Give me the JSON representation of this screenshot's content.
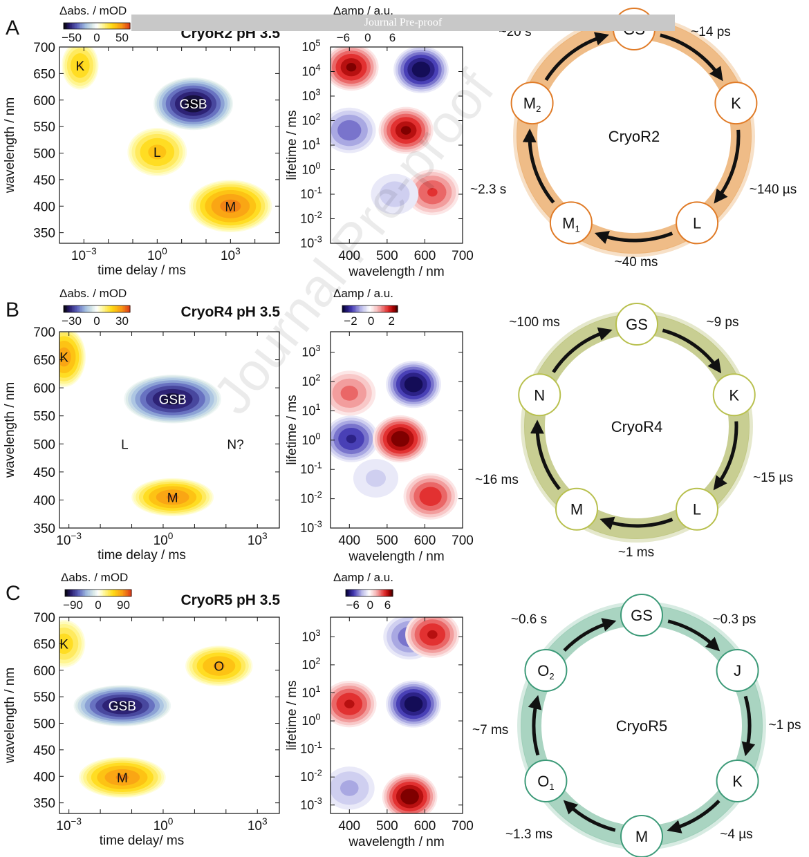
{
  "banner": "Journal Pre-proof",
  "watermark": "Journal Pre-proof",
  "shared": {
    "map_xlabel": "time delay / ms",
    "map_xlabel_c": "time delay/ ms",
    "map_ylabel": "wavelength / nm",
    "map_cbar_label": "Δabs. / mOD",
    "lda_xlabel": "wavelength / nm",
    "lda_ylabel": "lifetime / ms",
    "lda_cbar_label": "Δamp / a.u."
  },
  "chart_data": [
    {
      "panel": "A",
      "type": "heatmap",
      "title": "CryoR2 pH 3.5",
      "xlabel": "time delay / ms",
      "ylabel": "wavelength / nm",
      "x_scale": "log",
      "xlim": [
        0.0001,
        100000
      ],
      "x_ticks": [
        {
          "v": 0.001,
          "b": "10",
          "e": "−3"
        },
        {
          "v": 1,
          "b": "10",
          "e": "0"
        },
        {
          "v": 1000,
          "b": "10",
          "e": "3"
        }
      ],
      "ylim": [
        330,
        700
      ],
      "y_ticks": [
        350,
        400,
        450,
        500,
        550,
        600,
        650,
        700
      ],
      "colorbar": {
        "label": "Δabs. / mOD",
        "ticks": [
          "−50",
          "0",
          "50"
        ]
      },
      "features": [
        {
          "label": "K",
          "kind": "pos",
          "time": 0.0007,
          "wl": 665,
          "amp": 0.55,
          "swl": 30,
          "slog": 0.5
        },
        {
          "label": "GSB",
          "kind": "neg",
          "time": 30,
          "wl": 593,
          "amp": 1.0,
          "swl": 32,
          "slog": 1.05
        },
        {
          "label": "L",
          "kind": "pos",
          "time": 1,
          "wl": 502,
          "amp": 0.6,
          "swl": 30,
          "slog": 0.8
        },
        {
          "label": "M",
          "kind": "pos",
          "time": 1000,
          "wl": 400,
          "amp": 0.85,
          "swl": 32,
          "slog": 1.1
        }
      ]
    },
    {
      "panel": "A",
      "type": "heatmap",
      "title": "",
      "xlabel": "wavelength / nm",
      "ylabel": "lifetime / ms",
      "xlim": [
        350,
        700
      ],
      "x_ticks": [
        400,
        500,
        600,
        700
      ],
      "y_scale": "log",
      "ylim": [
        0.001,
        100000
      ],
      "y_ticks": [
        {
          "v": 0.001,
          "b": "10",
          "e": "-3"
        },
        {
          "v": 0.01,
          "b": "10",
          "e": "-2"
        },
        {
          "v": 0.1,
          "b": "10",
          "e": "-1"
        },
        {
          "v": 1,
          "b": "10",
          "e": "0"
        },
        {
          "v": 10,
          "b": "10",
          "e": "1"
        },
        {
          "v": 100,
          "b": "10",
          "e": "2"
        },
        {
          "v": 1000,
          "b": "10",
          "e": "3"
        },
        {
          "v": 10000,
          "b": "10",
          "e": "4"
        },
        {
          "v": 100000,
          "b": "10",
          "e": "5"
        }
      ],
      "colorbar": {
        "label": "Δamp / a.u.",
        "ticks": [
          "−6",
          "0",
          "6"
        ]
      },
      "annotation": "~2.3 s",
      "features": [
        {
          "kind": "pos",
          "wl": 405,
          "lifetime": 15000,
          "amp": 0.9
        },
        {
          "kind": "neg",
          "wl": 590,
          "lifetime": 12000,
          "amp": 1.0
        },
        {
          "kind": "neg",
          "wl": 400,
          "lifetime": 40,
          "amp": 0.6
        },
        {
          "kind": "pos",
          "wl": 550,
          "lifetime": 40,
          "amp": 0.9
        },
        {
          "kind": "pos",
          "wl": 620,
          "lifetime": 0.12,
          "amp": 0.65
        },
        {
          "kind": "neg",
          "wl": 520,
          "lifetime": 0.1,
          "amp": 0.3
        }
      ]
    },
    {
      "panel": "A",
      "type": "cycle",
      "center_label": "CryoR2",
      "color": "#e9a55f",
      "edge_color": "#e07b27",
      "states": [
        {
          "label": "GS",
          "sub": ""
        },
        {
          "label": "K",
          "sub": ""
        },
        {
          "label": "L",
          "sub": ""
        },
        {
          "label": "M",
          "sub": "1"
        },
        {
          "label": "M",
          "sub": "2"
        }
      ],
      "transitions": [
        "~14 ps",
        "~140 µs",
        "~40 ms",
        "~2.3 s",
        "~20 s"
      ]
    },
    {
      "panel": "B",
      "type": "heatmap",
      "title": "CryoR4 pH 3.5",
      "xlabel": "time delay / ms",
      "ylabel": "wavelength / nm",
      "x_scale": "log",
      "xlim": [
        0.0005,
        5000
      ],
      "x_ticks": [
        {
          "v": 0.001,
          "b": "10",
          "e": "−3"
        },
        {
          "v": 1,
          "b": "10",
          "e": "0"
        },
        {
          "v": 1000,
          "b": "10",
          "e": "3"
        }
      ],
      "ylim": [
        350,
        700
      ],
      "y_ticks": [
        350,
        400,
        450,
        500,
        550,
        600,
        650,
        700
      ],
      "colorbar": {
        "label": "Δabs. / mOD",
        "ticks": [
          "−30",
          "0",
          "30"
        ]
      },
      "features": [
        {
          "label": "K",
          "kind": "pos",
          "time": 0.0007,
          "wl": 655,
          "amp": 0.75,
          "swl": 35,
          "slog": 0.45
        },
        {
          "label": "GSB",
          "kind": "neg",
          "time": 2,
          "wl": 580,
          "amp": 0.95,
          "swl": 28,
          "slog": 1.0
        },
        {
          "label": "L",
          "kind": "text",
          "time": 0.06,
          "wl": 500
        },
        {
          "label": "N?",
          "kind": "text",
          "time": 200,
          "wl": 500
        },
        {
          "label": "M",
          "kind": "pos",
          "time": 2,
          "wl": 405,
          "amp": 0.8,
          "swl": 22,
          "slog": 0.85
        }
      ]
    },
    {
      "panel": "B",
      "type": "heatmap",
      "title": "",
      "xlabel": "wavelength / nm",
      "ylabel": "lifetime / ms",
      "xlim": [
        350,
        700
      ],
      "x_ticks": [
        400,
        500,
        600,
        700
      ],
      "y_scale": "log",
      "ylim": [
        0.001,
        5000
      ],
      "y_ticks": [
        {
          "v": 0.001,
          "b": "10",
          "e": "-3"
        },
        {
          "v": 0.01,
          "b": "10",
          "e": "-2"
        },
        {
          "v": 0.1,
          "b": "10",
          "e": "-1"
        },
        {
          "v": 1,
          "b": "10",
          "e": "0"
        },
        {
          "v": 10,
          "b": "10",
          "e": "1"
        },
        {
          "v": 100,
          "b": "10",
          "e": "2"
        },
        {
          "v": 1000,
          "b": "10",
          "e": "3"
        }
      ],
      "colorbar": {
        "label": "Δamp / a.u.",
        "ticks": [
          "−2",
          "0",
          "2"
        ]
      },
      "annotation": "~16 ms",
      "features": [
        {
          "kind": "neg",
          "wl": 570,
          "lifetime": 80,
          "amp": 1.0
        },
        {
          "kind": "pos",
          "wl": 400,
          "lifetime": 40,
          "amp": 0.55
        },
        {
          "kind": "neg",
          "wl": 405,
          "lifetime": 1.1,
          "amp": 0.8
        },
        {
          "kind": "pos",
          "wl": 535,
          "lifetime": 1.1,
          "amp": 1.0
        },
        {
          "kind": "pos",
          "wl": 615,
          "lifetime": 0.012,
          "amp": 0.75
        },
        {
          "kind": "neg",
          "wl": 470,
          "lifetime": 0.05,
          "amp": 0.25
        }
      ]
    },
    {
      "panel": "B",
      "type": "cycle",
      "center_label": "CryoR4",
      "color": "#b5be6e",
      "edge_color": "#b8c04e",
      "states": [
        {
          "label": "GS",
          "sub": ""
        },
        {
          "label": "K",
          "sub": ""
        },
        {
          "label": "L",
          "sub": ""
        },
        {
          "label": "M",
          "sub": ""
        },
        {
          "label": "N",
          "sub": ""
        }
      ],
      "transitions": [
        "~9 ps",
        "~15 µs",
        "~1 ms",
        "~16 ms",
        "~100 ms"
      ]
    },
    {
      "panel": "C",
      "type": "heatmap",
      "title": "CryoR5 pH 3.5",
      "xlabel": "time delay/ ms",
      "ylabel": "wavelength / nm",
      "x_scale": "log",
      "xlim": [
        0.0005,
        5000
      ],
      "x_ticks": [
        {
          "v": 0.001,
          "b": "10",
          "e": "−3"
        },
        {
          "v": 1,
          "b": "10",
          "e": "0"
        },
        {
          "v": 1000,
          "b": "10",
          "e": "3"
        }
      ],
      "ylim": [
        330,
        700
      ],
      "y_ticks": [
        350,
        400,
        450,
        500,
        550,
        600,
        650,
        700
      ],
      "colorbar": {
        "label": "Δabs. / mOD",
        "ticks": [
          "−90",
          "0",
          "90"
        ]
      },
      "features": [
        {
          "label": "K",
          "kind": "pos",
          "time": 0.0007,
          "wl": 650,
          "amp": 0.5,
          "swl": 30,
          "slog": 0.45
        },
        {
          "label": "O",
          "kind": "pos",
          "time": 60,
          "wl": 608,
          "amp": 0.7,
          "swl": 25,
          "slog": 0.7
        },
        {
          "label": "GSB",
          "kind": "neg",
          "time": 0.05,
          "wl": 533,
          "amp": 0.95,
          "swl": 25,
          "slog": 1.0
        },
        {
          "label": "M",
          "kind": "pos",
          "time": 0.05,
          "wl": 398,
          "amp": 0.8,
          "swl": 25,
          "slog": 0.9
        }
      ]
    },
    {
      "panel": "C",
      "type": "heatmap",
      "title": "",
      "xlabel": "wavelength / nm",
      "ylabel": "lifetime / ms",
      "xlim": [
        350,
        700
      ],
      "x_ticks": [
        400,
        500,
        600,
        700
      ],
      "y_scale": "log",
      "ylim": [
        0.0005,
        5000
      ],
      "y_ticks": [
        {
          "v": 0.001,
          "b": "10",
          "e": "-3"
        },
        {
          "v": 0.01,
          "b": "10",
          "e": "-2"
        },
        {
          "v": 0.1,
          "b": "10",
          "e": "-1"
        },
        {
          "v": 1,
          "b": "10",
          "e": "0"
        },
        {
          "v": 10,
          "b": "10",
          "e": "1"
        },
        {
          "v": 100,
          "b": "10",
          "e": "2"
        },
        {
          "v": 1000,
          "b": "10",
          "e": "3"
        }
      ],
      "colorbar": {
        "label": "Δamp / a.u.",
        "ticks": [
          "−6",
          "0",
          "6"
        ]
      },
      "annotation": "~7 ms",
      "features": [
        {
          "kind": "neg",
          "wl": 560,
          "lifetime": 1000,
          "amp": 0.6
        },
        {
          "kind": "pos",
          "wl": 620,
          "lifetime": 1200,
          "amp": 0.8
        },
        {
          "kind": "pos",
          "wl": 400,
          "lifetime": 4,
          "amp": 0.8
        },
        {
          "kind": "neg",
          "wl": 570,
          "lifetime": 4,
          "amp": 1.0
        },
        {
          "kind": "pos",
          "wl": 560,
          "lifetime": 0.002,
          "amp": 1.0
        },
        {
          "kind": "neg",
          "wl": 400,
          "lifetime": 0.004,
          "amp": 0.4
        }
      ]
    },
    {
      "panel": "C",
      "type": "cycle",
      "center_label": "CryoR5",
      "color": "#8cc5ac",
      "edge_color": "#3c9a78",
      "states": [
        {
          "label": "GS",
          "sub": ""
        },
        {
          "label": "J",
          "sub": ""
        },
        {
          "label": "K",
          "sub": ""
        },
        {
          "label": "M",
          "sub": ""
        },
        {
          "label": "O",
          "sub": "1"
        },
        {
          "label": "O",
          "sub": "2"
        }
      ],
      "transitions": [
        "~0.3 ps",
        "~1 ps",
        "~4 µs",
        "~1.3 ms",
        "~7 ms",
        "~0.6 s"
      ]
    }
  ]
}
